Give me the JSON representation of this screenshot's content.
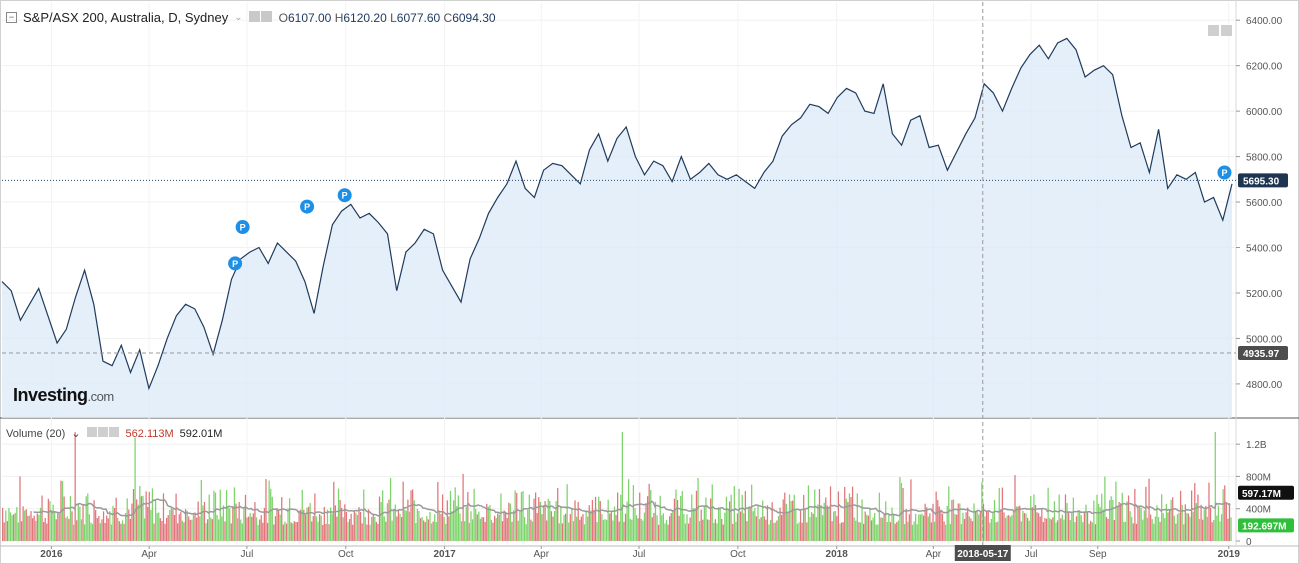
{
  "legend": {
    "collapse_symbol": "−",
    "title": "S&P/ASX 200, Australia, D, Sydney",
    "caret": "⌄",
    "open_label": "O",
    "open": "6107.00",
    "high_label": "H",
    "high": "6120.20",
    "low_label": "L",
    "low": "6077.60",
    "close_label": "C",
    "close": "6094.30"
  },
  "volume_legend": {
    "label": "Volume (20)",
    "caret": "⌄",
    "value_1": "562.113M",
    "value_2": "592.01M"
  },
  "logo": {
    "main": "Investing",
    "suffix": ".com"
  },
  "colors": {
    "line": "#1f3b5c",
    "area": "#dce9f8",
    "up_volume": "#7ed36b",
    "down_volume": "#e0767a",
    "ma_line": "#9a9a9a",
    "price_badge": "#1e3552",
    "marker": "#1e8fe6",
    "vol_badge_green": "#2fbf3a"
  },
  "chart_data": [
    {
      "type": "area",
      "series": [
        {
          "x_start": "2015-11-16",
          "x_end": "2019-01-04",
          "values": [
            5250,
            5210,
            5080,
            5150,
            5220,
            5100,
            4980,
            5040,
            5180,
            5300,
            5150,
            4900,
            4880,
            4970,
            4850,
            4950,
            4780,
            4880,
            5000,
            5100,
            5150,
            5130,
            5050,
            4930,
            5080,
            5260,
            5350,
            5380,
            5400,
            5330,
            5420,
            5380,
            5340,
            5250,
            5110,
            5320,
            5500,
            5560,
            5590,
            5530,
            5550,
            5510,
            5460,
            5210,
            5380,
            5420,
            5480,
            5460,
            5300,
            5230,
            5160,
            5350,
            5440,
            5550,
            5620,
            5680,
            5780,
            5660,
            5620,
            5740,
            5770,
            5760,
            5720,
            5680,
            5830,
            5900,
            5780,
            5880,
            5930,
            5800,
            5720,
            5780,
            5760,
            5690,
            5800,
            5700,
            5730,
            5770,
            5720,
            5700,
            5720,
            5690,
            5660,
            5730,
            5780,
            5890,
            5940,
            5970,
            6030,
            6020,
            5990,
            6060,
            6100,
            6080,
            6000,
            5990,
            6120,
            5900,
            5850,
            5960,
            5980,
            5840,
            5850,
            5740,
            5820,
            5900,
            5970,
            6120,
            6080,
            6000,
            6100,
            6190,
            6250,
            6290,
            6230,
            6300,
            6320,
            6270,
            6150,
            6180,
            6200,
            6160,
            5980,
            5840,
            5860,
            5730,
            5920,
            5660,
            5720,
            5700,
            5730,
            5600,
            5620,
            5520,
            5680
          ]
        }
      ],
      "ylim": [
        4650,
        6480
      ],
      "y_ticks": [
        4800,
        5000,
        5200,
        5400,
        5600,
        5800,
        6000,
        6200,
        6400
      ],
      "y_tick_labels": [
        "4800.00",
        "5000.00",
        "5200.00",
        "5400.00",
        "5600.00",
        "5800.00",
        "6000.00",
        "6200.00",
        "6400.00"
      ],
      "x_tick_labels": [
        "2016",
        "Apr",
        "Jul",
        "Oct",
        "2017",
        "Apr",
        "Jul",
        "Oct",
        "2018",
        "Apr",
        "2018-05-17",
        "Jul",
        "Sep",
        "2019"
      ],
      "x_tick_dates": [
        "2016-01-01",
        "2016-04-01",
        "2016-07-01",
        "2016-10-01",
        "2017-01-01",
        "2017-04-01",
        "2017-07-01",
        "2017-10-01",
        "2018-01-01",
        "2018-04-01",
        "2018-05-17",
        "2018-07-01",
        "2018-09-01",
        "2019-01-01"
      ],
      "crosshair_date": "2018-05-17",
      "horizontal_lines": [
        {
          "value": 5695.3,
          "label": "5695.30",
          "style": "dotted"
        },
        {
          "value": 4935.97,
          "label": "4935.97",
          "style": "dashed"
        }
      ],
      "annotations": [
        {
          "text": "P",
          "date": "2016-06-20",
          "value": 5330
        },
        {
          "text": "P",
          "date": "2016-06-27",
          "value": 5490
        },
        {
          "text": "P",
          "date": "2016-08-26",
          "value": 5580
        },
        {
          "text": "P",
          "date": "2016-09-30",
          "value": 5630
        },
        {
          "text": "P",
          "date": "2018-12-28",
          "value": 5730
        }
      ],
      "grid": true
    },
    {
      "type": "bar",
      "title": "Volume (20)",
      "ylim": [
        -50000000,
        1450000000
      ],
      "y_ticks": [
        0,
        400000000,
        800000000,
        1200000000
      ],
      "y_tick_labels": [
        "0",
        "400M",
        "800M",
        "1.2B"
      ],
      "badges": [
        {
          "value": 597170000,
          "label": "597.17M",
          "color": "dark"
        },
        {
          "value": 192697000,
          "label": "192.697M",
          "color": "green"
        }
      ],
      "moving_average_period": 20,
      "typical_volume": 570000000,
      "spikes": [
        {
          "date": "2016-01-22",
          "value": 1350000000
        },
        {
          "date": "2016-03-18",
          "value": 1280000000
        },
        {
          "date": "2017-06-16",
          "value": 1350000000
        },
        {
          "date": "2018-12-21",
          "value": 1350000000
        }
      ]
    }
  ]
}
